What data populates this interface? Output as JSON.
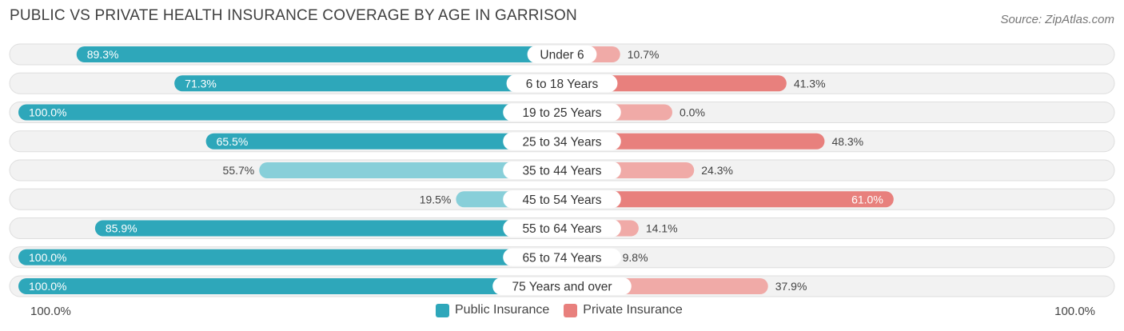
{
  "title": "PUBLIC VS PRIVATE HEALTH INSURANCE COVERAGE BY AGE IN GARRISON",
  "source": "Source: ZipAtlas.com",
  "colors": {
    "public": "#2ea7ba",
    "public_light": "#88cfd9",
    "private": "#e8807d",
    "private_light": "#f0aaa7"
  },
  "chart_data": {
    "type": "bar",
    "orientation": "horizontal-diverging",
    "categories": [
      "Under 6",
      "6 to 18 Years",
      "19 to 25 Years",
      "25 to 34 Years",
      "35 to 44 Years",
      "45 to 54 Years",
      "55 to 64 Years",
      "65 to 74 Years",
      "75 Years and over"
    ],
    "series": [
      {
        "name": "Public Insurance",
        "values": [
          89.3,
          71.3,
          100.0,
          65.5,
          55.7,
          19.5,
          85.9,
          100.0,
          100.0
        ],
        "labels": [
          "89.3%",
          "71.3%",
          "100.0%",
          "65.5%",
          "55.7%",
          "19.5%",
          "85.9%",
          "100.0%",
          "100.0%"
        ]
      },
      {
        "name": "Private Insurance",
        "values": [
          10.7,
          41.3,
          0.0,
          48.3,
          24.3,
          61.0,
          14.1,
          9.8,
          37.9
        ],
        "labels": [
          "10.7%",
          "41.3%",
          "0.0%",
          "48.3%",
          "24.3%",
          "61.0%",
          "14.1%",
          "9.8%",
          "37.9%"
        ]
      }
    ],
    "xlim": [
      0,
      100
    ],
    "axis_left_label": "100.0%",
    "axis_right_label": "100.0%",
    "legend_position": "bottom-center"
  }
}
